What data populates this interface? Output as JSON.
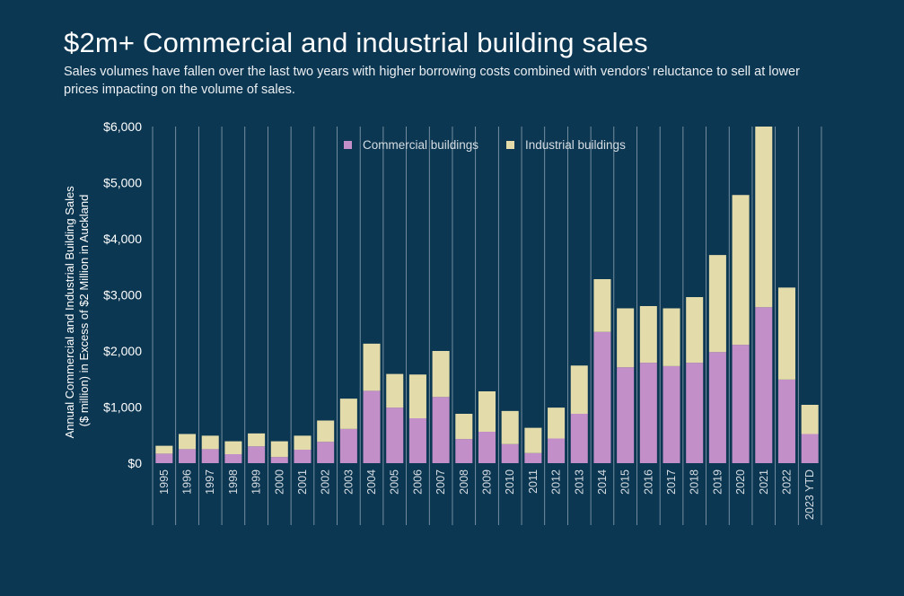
{
  "header": {
    "title": "$2m+ Commercial and industrial building sales",
    "subtitle": "Sales volumes have fallen over the last two years with higher borrowing costs combined with vendors’ reluctance to sell at lower prices impacting on the volume of sales."
  },
  "colors": {
    "background": "#0c3752",
    "commercial": "#c38fc8",
    "industrial": "#e3dcaa",
    "gridline": "#b8c6d2"
  },
  "chart_data": {
    "type": "bar",
    "stacked": true,
    "categories": [
      "1995",
      "1996",
      "1997",
      "1998",
      "1999",
      "2000",
      "2001",
      "2002",
      "2003",
      "2004",
      "2005",
      "2006",
      "2007",
      "2008",
      "2009",
      "2010",
      "2011",
      "2012",
      "2013",
      "2014",
      "2015",
      "2016",
      "2017",
      "2018",
      "2019",
      "2020",
      "2021",
      "2022",
      "2023 YTD"
    ],
    "series": [
      {
        "name": "Commercial buildings",
        "color": "#c38fc8",
        "values": [
          170,
          250,
          250,
          160,
          300,
          110,
          240,
          380,
          610,
          1290,
          990,
          800,
          1180,
          430,
          560,
          340,
          180,
          440,
          880,
          2340,
          1710,
          1790,
          1730,
          1790,
          1980,
          2110,
          2780,
          1490,
          520
        ]
      },
      {
        "name": "Industrial buildings",
        "color": "#e3dcaa",
        "values": [
          140,
          270,
          240,
          230,
          230,
          280,
          250,
          380,
          540,
          840,
          600,
          780,
          820,
          450,
          720,
          590,
          450,
          550,
          860,
          940,
          1050,
          1010,
          1030,
          1170,
          1730,
          2670,
          3220,
          1640,
          520
        ]
      }
    ],
    "ylabel_line1": "Annual Commercial and Industrial Building Sales",
    "ylabel_line2": "($ million) in Excess of $2 Million in Auckland",
    "ylim": [
      0,
      6000
    ],
    "yticks": [
      0,
      1000,
      2000,
      3000,
      4000,
      5000,
      6000
    ],
    "ytick_labels": [
      "$0",
      "$1,000",
      "$2,000",
      "$3,000",
      "$4,000",
      "$5,000",
      "$6,000"
    ],
    "grid": "vertical",
    "legend": {
      "position": "top",
      "entries": [
        "Commercial buildings",
        "Industrial buildings"
      ]
    }
  }
}
